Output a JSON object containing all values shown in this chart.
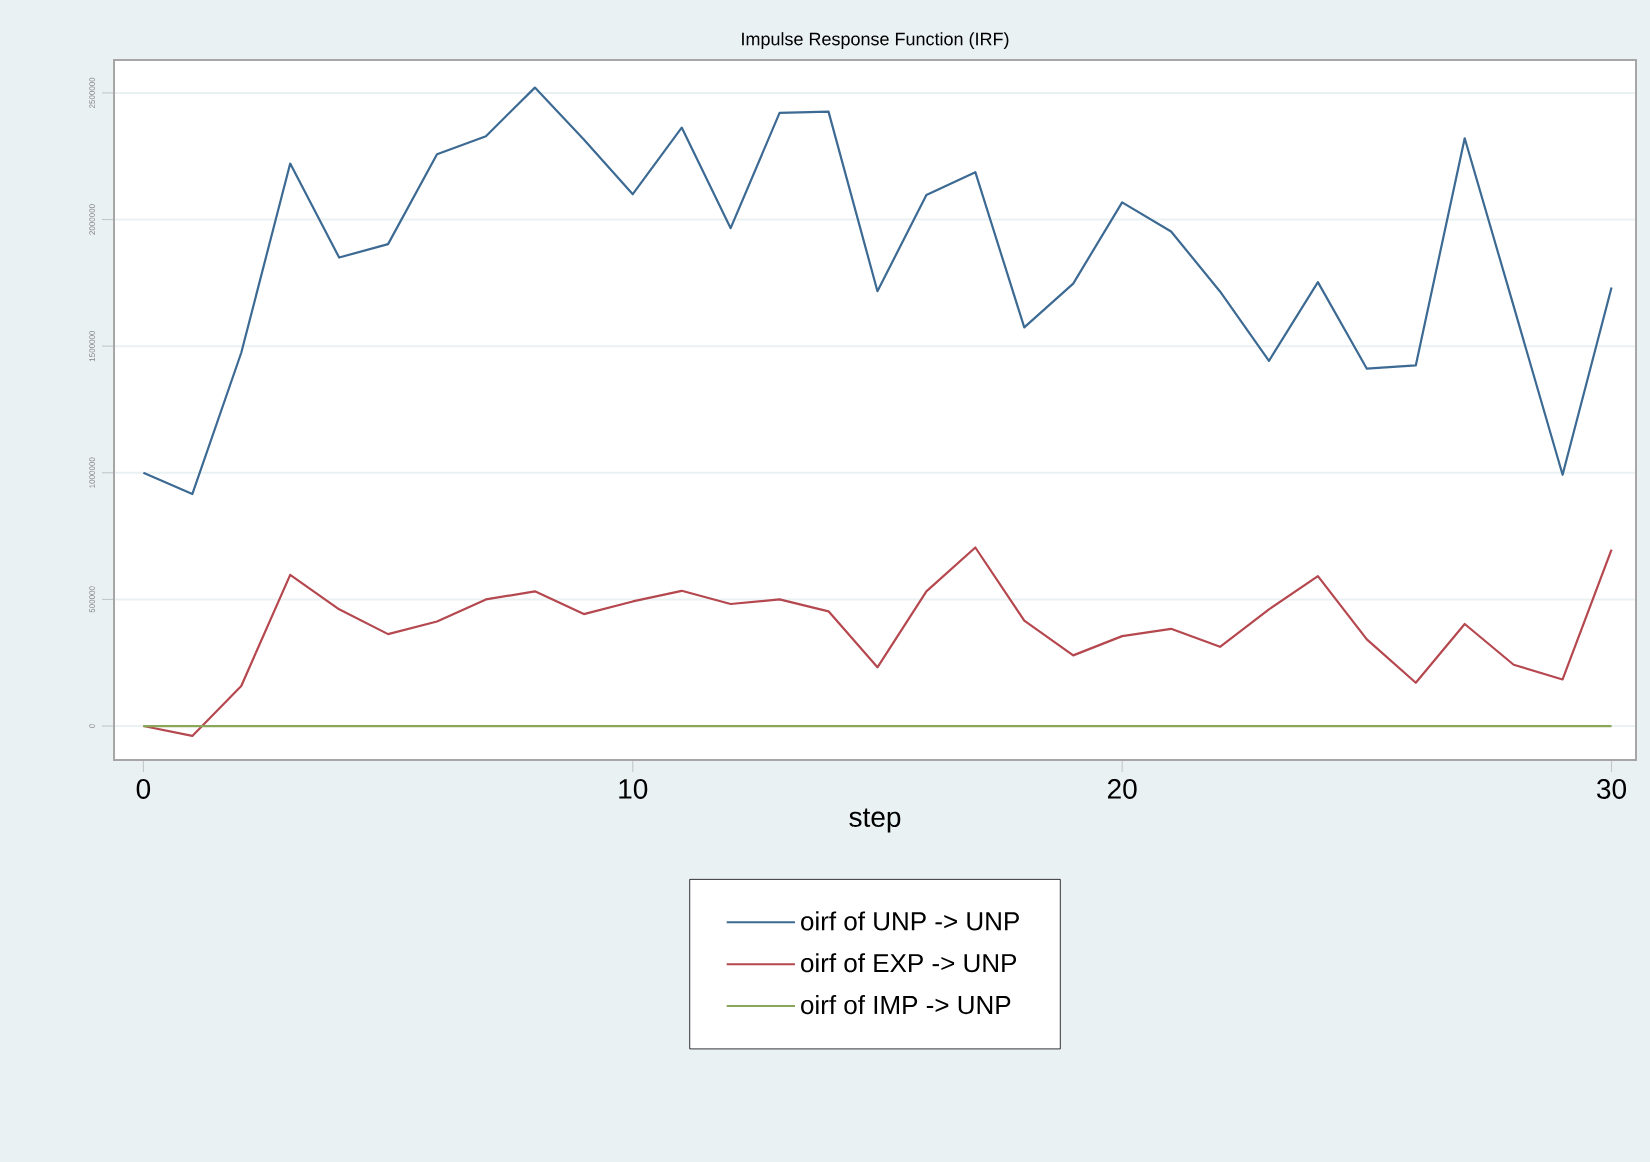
{
  "chart_data": {
    "type": "line",
    "title": "Impulse Response Function (IRF)",
    "xlabel": "step",
    "x": [
      0,
      1,
      2,
      3,
      4,
      5,
      6,
      7,
      8,
      9,
      10,
      11,
      12,
      13,
      14,
      15,
      16,
      17,
      18,
      19,
      20,
      21,
      22,
      23,
      24,
      25,
      26,
      27,
      28,
      29,
      30
    ],
    "series": [
      {
        "name": "oirf of UNP -> UNP",
        "color": "#3c6a93",
        "values": [
          1000000,
          916000,
          1474000,
          2221000,
          1850000,
          1903000,
          2258000,
          2329000,
          2521000,
          2316000,
          2100000,
          2363000,
          1966000,
          2421000,
          2426000,
          1717000,
          2097000,
          2187000,
          1574000,
          1747000,
          2068000,
          1953000,
          1716000,
          1442000,
          1753000,
          1411000,
          1424000,
          2321000,
          1658000,
          992000,
          1732000
        ]
      },
      {
        "name": "oirf of EXP -> UNP",
        "color": "#b5474f",
        "values": [
          0,
          -39000,
          158000,
          597000,
          461000,
          363000,
          413000,
          500000,
          532000,
          442000,
          492000,
          534000,
          482000,
          500000,
          453000,
          232000,
          532000,
          705000,
          416000,
          279000,
          355000,
          384000,
          313000,
          461000,
          592000,
          342000,
          171000,
          403000,
          242000,
          184000,
          697000
        ]
      },
      {
        "name": "oirf of IMP -> UNP",
        "color": "#8aa65a",
        "values": [
          0,
          0,
          0,
          0,
          0,
          0,
          0,
          0,
          0,
          0,
          0,
          0,
          0,
          0,
          0,
          0,
          0,
          0,
          0,
          0,
          0,
          0,
          0,
          0,
          0,
          0,
          0,
          0,
          0,
          0,
          0
        ]
      }
    ],
    "xlim": [
      -0.6,
      30.5
    ],
    "ylim": [
      -134000,
      2630000
    ],
    "xticks": [
      0,
      10,
      20,
      30
    ],
    "yticks": [
      0,
      500000,
      1000000,
      1500000,
      2000000,
      2500000
    ],
    "grid": "y",
    "legend": "bottom"
  }
}
